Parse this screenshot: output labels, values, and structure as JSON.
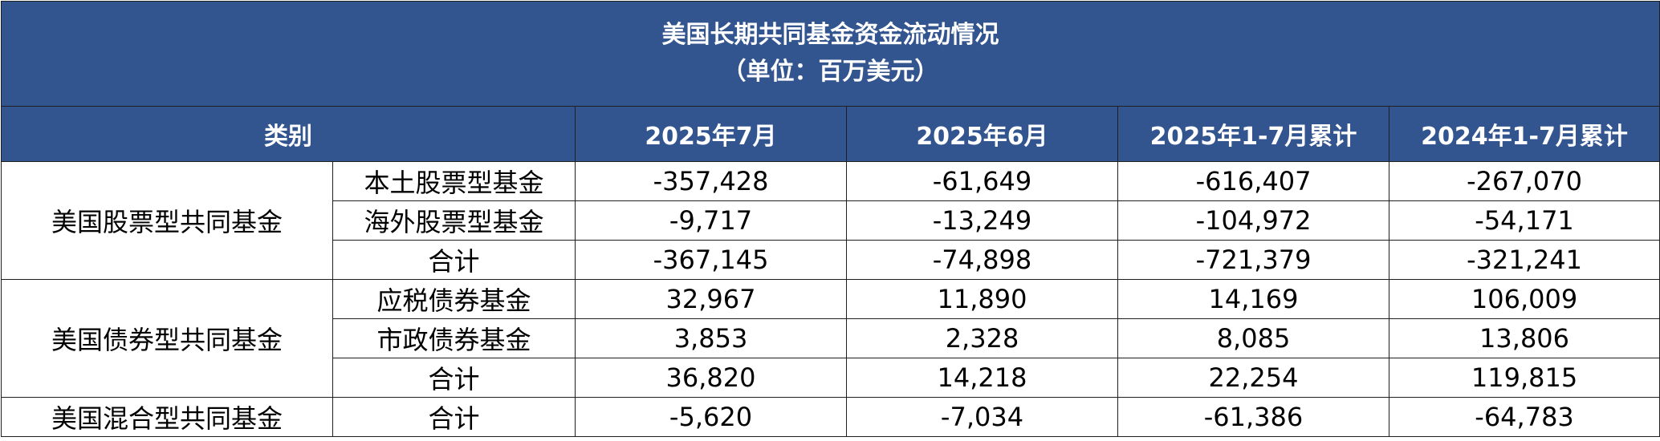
{
  "title": {
    "line1": "美国长期共同基金资金流动情况",
    "line2": "（单位：百万美元）"
  },
  "header": {
    "category": "类别",
    "columns": [
      "2025年7月",
      "2025年6月",
      "2025年1-7月累计",
      "2024年1-7月累计"
    ]
  },
  "groups": [
    {
      "name": "美国股票型共同基金",
      "rows": [
        {
          "sub": "本土股票型基金",
          "values": [
            "-357,428",
            "-61,649",
            "-616,407",
            "-267,070"
          ]
        },
        {
          "sub": "海外股票型基金",
          "values": [
            "-9,717",
            "-13,249",
            "-104,972",
            "-54,171"
          ]
        },
        {
          "sub": "合计",
          "values": [
            "-367,145",
            "-74,898",
            "-721,379",
            "-321,241"
          ]
        }
      ]
    },
    {
      "name": "美国债券型共同基金",
      "rows": [
        {
          "sub": "应税债券基金",
          "values": [
            "32,967",
            "11,890",
            "14,169",
            "106,009"
          ]
        },
        {
          "sub": "市政债券基金",
          "values": [
            "3,853",
            "2,328",
            "8,085",
            "13,806"
          ]
        },
        {
          "sub": "合计",
          "values": [
            "36,820",
            "14,218",
            "22,254",
            "119,815"
          ]
        }
      ]
    },
    {
      "name": "美国混合型共同基金",
      "rows": [
        {
          "sub": "合计",
          "values": [
            "-5,620",
            "-7,034",
            "-61,386",
            "-64,783"
          ]
        }
      ]
    }
  ],
  "colors": {
    "header_bg": "#33558f",
    "header_text": "#ffffff",
    "border": "#1f1f1f"
  }
}
